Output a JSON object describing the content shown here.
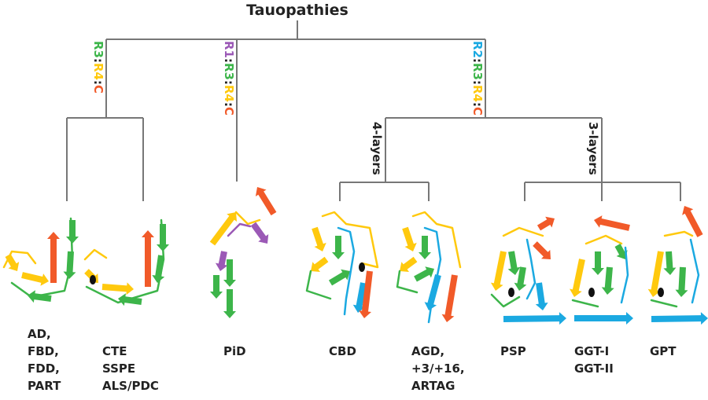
{
  "title": "Tauopathies",
  "branches": {
    "left": {
      "parts": [
        "R3",
        ":",
        "R4",
        ":",
        "C"
      ]
    },
    "middle": {
      "parts": [
        "R1",
        ":",
        "R3",
        ":",
        "R4",
        ":",
        "C"
      ]
    },
    "right": {
      "parts": [
        "R2",
        ":",
        "R3",
        ":",
        "R4",
        ":",
        "C"
      ]
    },
    "four_layers": "4-layers",
    "three_layers": "3-layers"
  },
  "colors": {
    "R1": "#9b59b6",
    "R2": "#1ba9e1",
    "R3": "#3db54a",
    "R4": "#ffc90e",
    "C": "#f15a29",
    "line": "#777777"
  },
  "diseases": [
    {
      "label": "AD,\nFBD,\nFDD,\nPART"
    },
    {
      "label": "CTE\nSSPE\nALS/PDC"
    },
    {
      "label": "PiD"
    },
    {
      "label": "CBD"
    },
    {
      "label": "AGD,\n+3/+16,\nARTAG"
    },
    {
      "label": "PSP"
    },
    {
      "label": "GGT-I\nGGT-II"
    },
    {
      "label": "GPT"
    }
  ]
}
